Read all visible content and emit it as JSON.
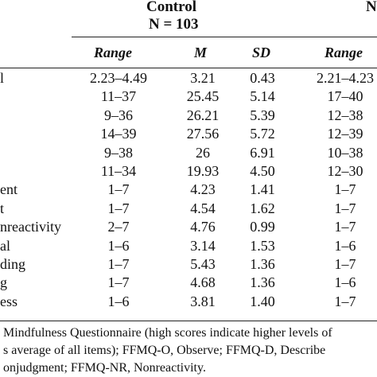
{
  "group_header": {
    "control_title": "Control",
    "control_n": "N = 103",
    "partial_title": "N"
  },
  "columns": [
    "Range",
    "M",
    "SD",
    "Range"
  ],
  "rows": [
    {
      "label": "l",
      "range": "2.23–4.49",
      "m": "3.21",
      "sd": "0.43",
      "range2": "2.21–4.23"
    },
    {
      "label": "",
      "range": "11–37",
      "m": "25.45",
      "sd": "5.14",
      "range2": "17–40"
    },
    {
      "label": "",
      "range": "9–36",
      "m": "26.21",
      "sd": "5.39",
      "range2": "12–38"
    },
    {
      "label": "",
      "range": "14–39",
      "m": "27.56",
      "sd": "5.72",
      "range2": "12–39"
    },
    {
      "label": "",
      "range": "9–38",
      "m": "26",
      "sd": "6.91",
      "range2": "10–38"
    },
    {
      "label": "",
      "range": "11–34",
      "m": "19.93",
      "sd": "4.50",
      "range2": "12–30"
    },
    {
      "label": "ent",
      "range": "1–7",
      "m": "4.23",
      "sd": "1.41",
      "range2": "1–7"
    },
    {
      "label": "t",
      "range": "1–7",
      "m": "4.54",
      "sd": "1.62",
      "range2": "1–7"
    },
    {
      "label": "nreactivity",
      "range": "2–7",
      "m": "4.76",
      "sd": "0.99",
      "range2": "1–7"
    },
    {
      "label": "al",
      "range": "1–6",
      "m": "3.14",
      "sd": "1.53",
      "range2": "1–6"
    },
    {
      "label": "ding",
      "range": "1–7",
      "m": "5.43",
      "sd": "1.36",
      "range2": "1–7"
    },
    {
      "label": "g",
      "range": "1–7",
      "m": "4.68",
      "sd": "1.36",
      "range2": "1–6"
    },
    {
      "label": "ess",
      "range": "1–6",
      "m": "3.81",
      "sd": "1.40",
      "range2": "1–7"
    }
  ],
  "footnote": [
    "Mindfulness Questionnaire (high scores indicate higher levels of",
    "s average of all items); FFMQ-O, Observe; FFMQ-D, Describe",
    "onjudgment; FFMQ-NR, Nonreactivity."
  ]
}
